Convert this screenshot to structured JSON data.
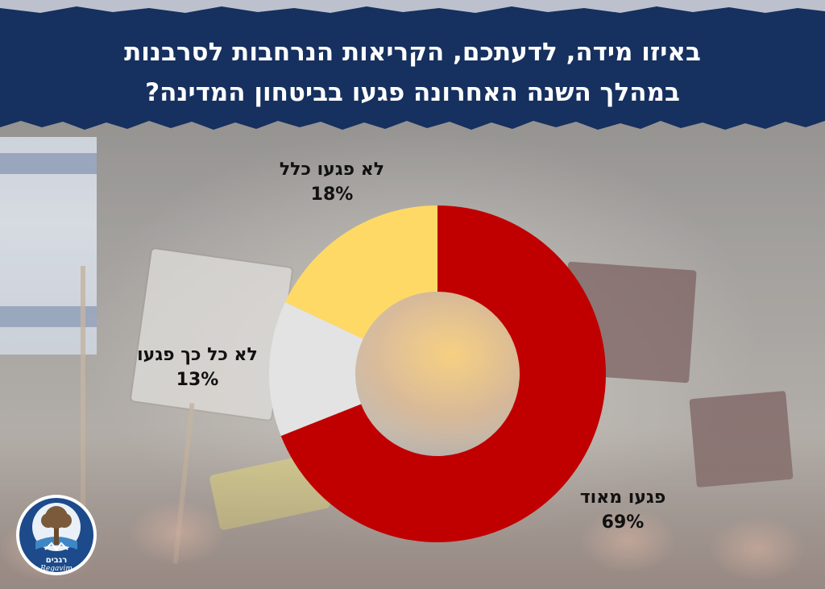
{
  "header": {
    "title_line1": "באיזו מידה, לדעתכם, הקריאות הנרחבות לסרבנות",
    "title_line2": "במהלך השנה האחרונה פגעו בביטחון המדינה?"
  },
  "colors": {
    "header_bg": "#16305f",
    "slice_very": "#c00000",
    "slice_not_so": "#e3e3e3",
    "slice_not_at_all": "#ffd966"
  },
  "chart_data": {
    "type": "pie",
    "title": "באיזו מידה, לדעתכם, הקריאות הנרחבות לסרבנות במהלך השנה האחרונה פגעו בביטחון המדינה?",
    "donut": true,
    "start": "top",
    "direction": "clockwise",
    "categories": [
      "פגעו מאוד",
      "לא כל כך פגעו",
      "לא פגעו כלל"
    ],
    "values": [
      69,
      13,
      18
    ],
    "value_labels": [
      "69%",
      "13%",
      "18%"
    ],
    "unit": "%"
  },
  "logo": {
    "text_he": "רגבים",
    "text_en": "Regavim",
    "icon": "tree-logo-icon"
  }
}
